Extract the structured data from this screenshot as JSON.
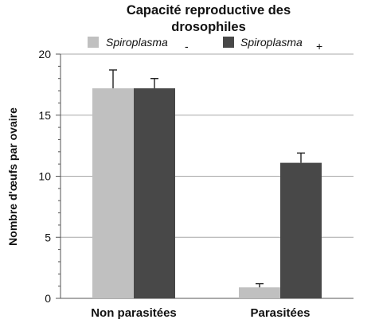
{
  "chart_data": {
    "type": "bar",
    "title_lines": [
      "Capacité reproductive des",
      "drosophiles"
    ],
    "ylabel": "Nombre d'œufs par ovaire",
    "xlabel": "",
    "categories": [
      "Non parasitées",
      "Parasitées"
    ],
    "ylim": [
      0,
      20
    ],
    "yticks": [
      0,
      5,
      10,
      15,
      20
    ],
    "minor_yticks": true,
    "grid": true,
    "legend_position": "top",
    "series": [
      {
        "name_text": "Spiroplasma",
        "name_sign": "-",
        "color": "#c0c0c0",
        "values": [
          17.2,
          0.9
        ],
        "errors": [
          1.5,
          0.3
        ]
      },
      {
        "name_text": "Spiroplasma",
        "name_sign": "+",
        "color": "#484848",
        "values": [
          17.2,
          11.1
        ],
        "errors": [
          0.8,
          0.8
        ]
      }
    ]
  }
}
